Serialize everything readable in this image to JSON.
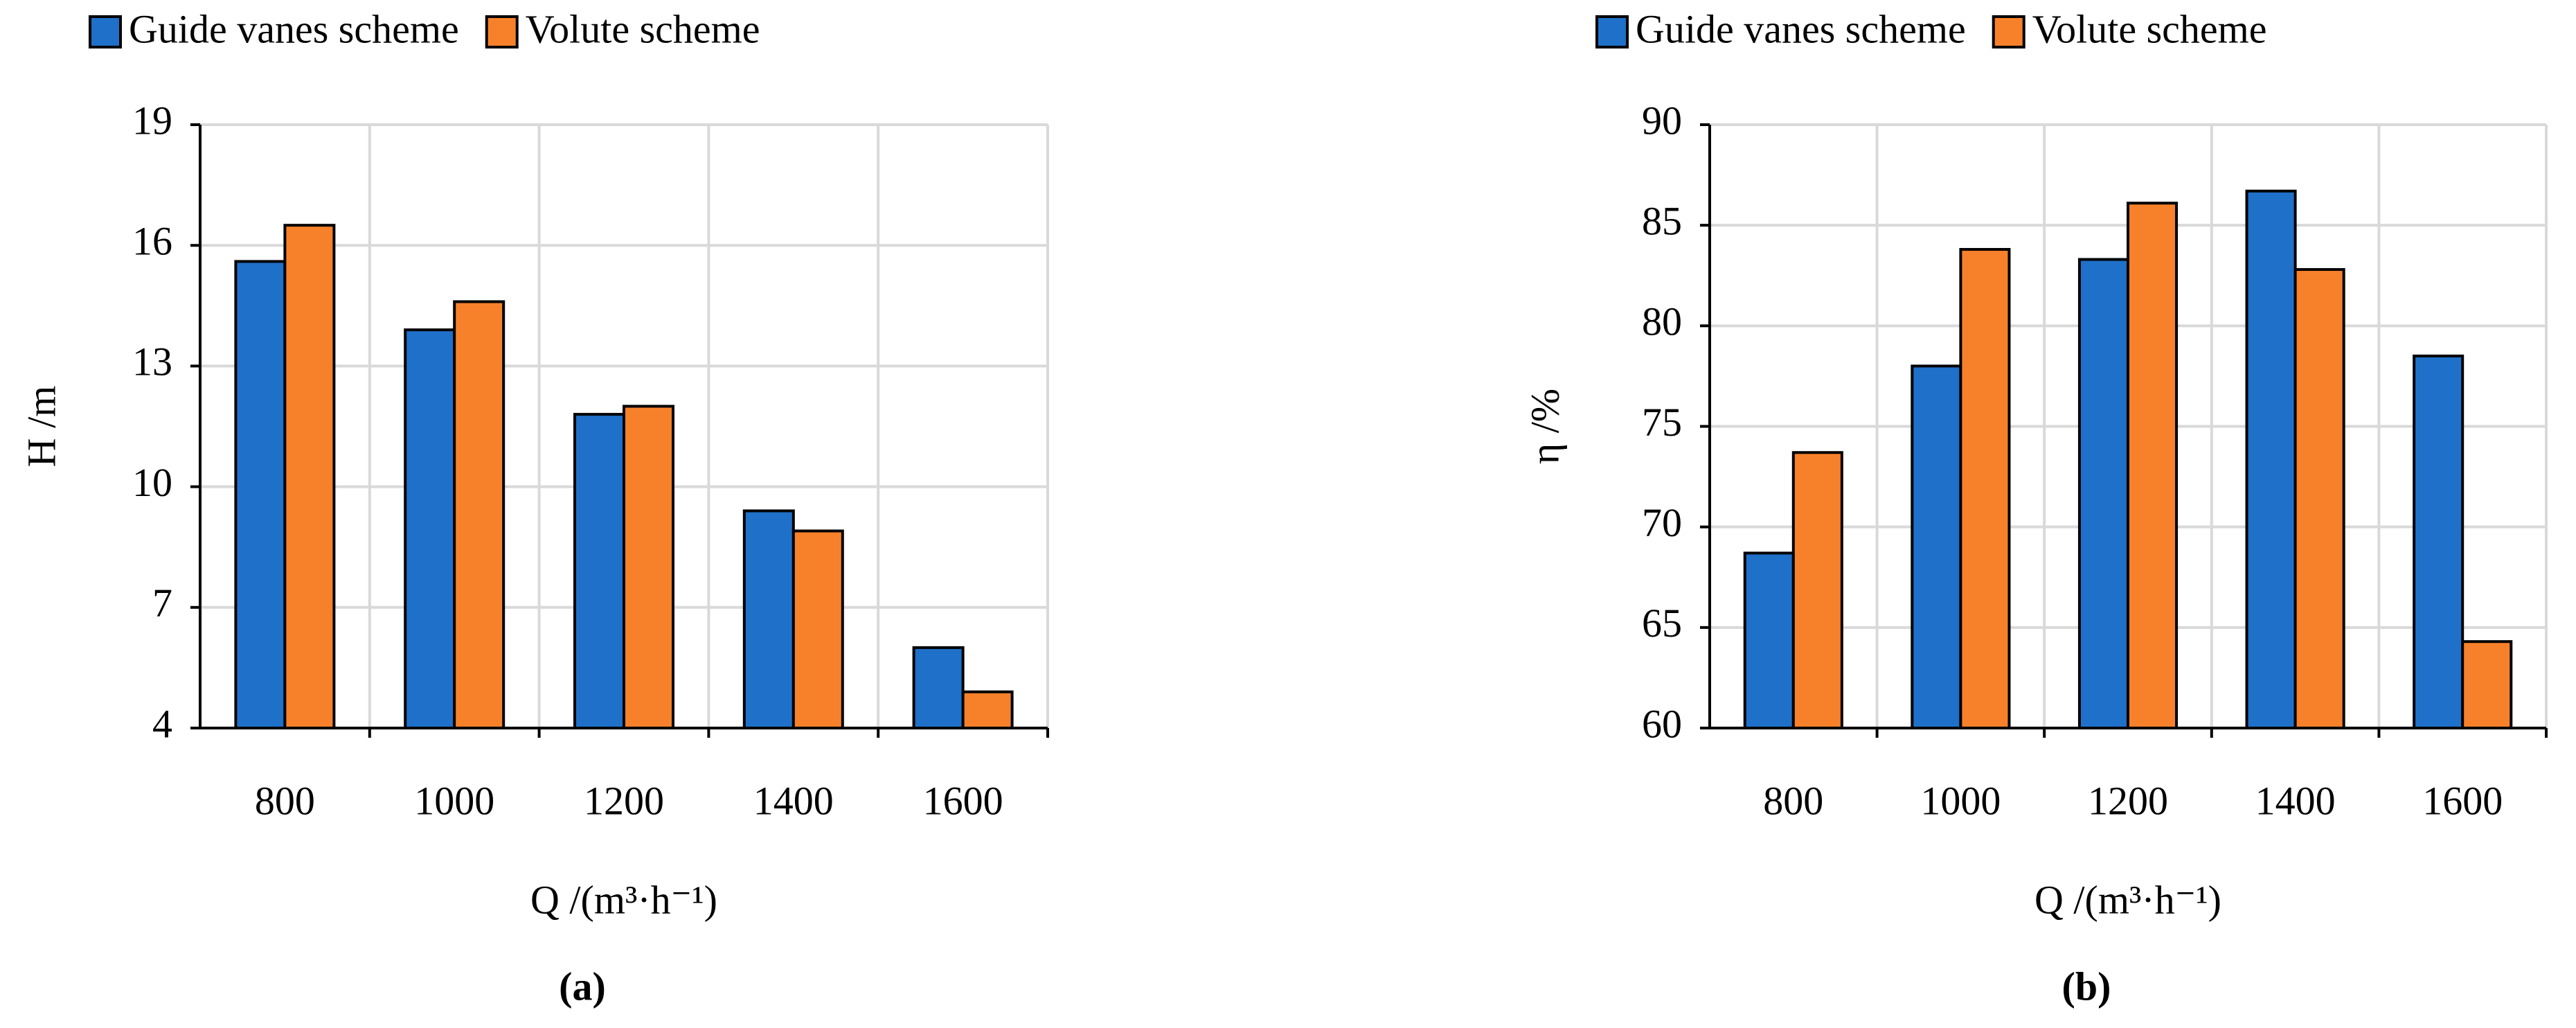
{
  "chart_data": [
    {
      "type": "bar",
      "caption": "(a)",
      "x_label": "Q /(m³·h⁻¹)",
      "y_label": "H /m",
      "categories": [
        "800",
        "1000",
        "1200",
        "1400",
        "1600"
      ],
      "series": [
        {
          "name": "Guide vanes scheme",
          "color": "#1f70c8",
          "values": [
            15.6,
            13.9,
            11.8,
            9.4,
            6.0
          ]
        },
        {
          "name": "Volute scheme",
          "color": "#f7812a",
          "values": [
            16.5,
            14.6,
            12.0,
            8.9,
            4.9
          ]
        }
      ],
      "ylim": [
        4,
        19
      ],
      "yticks": [
        4,
        7,
        10,
        13,
        16,
        19
      ],
      "grid": true,
      "legend": "top"
    },
    {
      "type": "bar",
      "caption": "(b)",
      "x_label": "Q /(m³·h⁻¹)",
      "y_label": "η /%",
      "categories": [
        "800",
        "1000",
        "1200",
        "1400",
        "1600"
      ],
      "series": [
        {
          "name": "Guide vanes scheme",
          "color": "#1f70c8",
          "values": [
            68.7,
            78.0,
            83.3,
            86.7,
            78.5
          ]
        },
        {
          "name": "Volute scheme",
          "color": "#f7812a",
          "values": [
            73.7,
            83.8,
            86.1,
            82.8,
            64.3
          ]
        }
      ],
      "ylim": [
        60,
        90
      ],
      "yticks": [
        60,
        65,
        70,
        75,
        80,
        85,
        90
      ],
      "grid": true,
      "legend": "top"
    }
  ]
}
